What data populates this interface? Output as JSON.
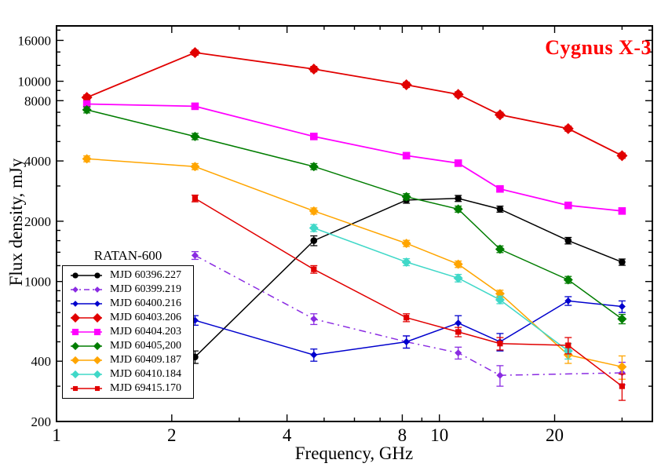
{
  "chart_data": {
    "type": "line",
    "title": "Cygnus X-3",
    "title_color": "#ff0000",
    "xlabel": "Frequency, GHz",
    "ylabel": "Flux density, mJy",
    "xscale": "log",
    "yscale": "log",
    "xlim": [
      1,
      36
    ],
    "ylim": [
      200,
      18900
    ],
    "x_ticks_major": [
      1,
      2,
      4,
      8,
      10,
      20
    ],
    "x_ticks_minor": [
      3,
      5,
      6,
      7,
      9,
      13,
      30
    ],
    "y_ticks_major": [
      200,
      400,
      1000,
      2000,
      4000,
      8000,
      10000,
      16000
    ],
    "y_ticks_minor": [
      300,
      500,
      600,
      700,
      800,
      900,
      1200,
      1400,
      1600,
      1800,
      3000,
      5000,
      6000,
      7000,
      9000,
      12000,
      14000,
      18000
    ],
    "legend_title": "RATAN-600",
    "legend_position": "lower left",
    "frequencies_ghz": [
      1.2,
      2.3,
      4.7,
      8.2,
      11.2,
      14.4,
      21.7,
      30.0
    ],
    "series": [
      {
        "name": "MJD 60396.227",
        "color": "#000000",
        "marker": "circle",
        "line": "solid",
        "values": [
          null,
          420,
          1600,
          2550,
          2600,
          2300,
          1600,
          1250
        ],
        "errors": [
          null,
          30,
          90,
          90,
          90,
          80,
          60,
          45
        ]
      },
      {
        "name": "MJD 60399.219",
        "color": "#8a2be2",
        "marker": "diamond-small",
        "line": "dashdot",
        "values": [
          null,
          1350,
          650,
          500,
          440,
          340,
          null,
          350
        ],
        "errors": [
          null,
          60,
          40,
          35,
          30,
          40,
          null,
          45
        ]
      },
      {
        "name": "MJD 60400.216",
        "color": "#0000cd",
        "marker": "diamond-small",
        "line": "solid",
        "values": [
          null,
          640,
          430,
          500,
          620,
          500,
          800,
          750
        ],
        "errors": [
          null,
          35,
          30,
          35,
          55,
          50,
          40,
          50
        ]
      },
      {
        "name": "MJD 60403.206",
        "color": "#e10000",
        "marker": "diamond-large",
        "line": "solid",
        "values": [
          8300,
          13900,
          11500,
          9600,
          8600,
          6800,
          5800,
          4250
        ],
        "errors": [
          250,
          400,
          350,
          290,
          260,
          200,
          170,
          130
        ]
      },
      {
        "name": "MJD 60404.203",
        "color": "#ff00ff",
        "marker": "square",
        "line": "solid",
        "values": [
          7700,
          7500,
          5300,
          4250,
          3900,
          2900,
          2400,
          2250
        ],
        "errors": [
          230,
          220,
          160,
          130,
          120,
          90,
          75,
          70
        ]
      },
      {
        "name": "MJD 60405,200",
        "color": "#007d00",
        "marker": "diamond",
        "line": "solid",
        "values": [
          7200,
          5300,
          3750,
          2650,
          2300,
          1450,
          1020,
          650
        ],
        "errors": [
          250,
          190,
          130,
          95,
          80,
          55,
          40,
          35
        ]
      },
      {
        "name": "MJD 60409.187",
        "color": "#ffa500",
        "marker": "diamond",
        "line": "solid",
        "values": [
          4100,
          3750,
          2250,
          1550,
          1220,
          870,
          430,
          375
        ],
        "errors": [
          140,
          130,
          80,
          55,
          45,
          35,
          40,
          50
        ]
      },
      {
        "name": "MJD 60410.184",
        "color": "#40d8c8",
        "marker": "diamond",
        "line": "solid",
        "values": [
          null,
          null,
          1850,
          1250,
          1040,
          810,
          450,
          null
        ],
        "errors": [
          null,
          null,
          75,
          50,
          45,
          35,
          40,
          null
        ]
      },
      {
        "name": "MJD 69415.170",
        "color": "#e10000",
        "marker": "square-small",
        "line": "solid",
        "values": [
          null,
          2600,
          1150,
          660,
          560,
          490,
          480,
          300
        ],
        "errors": [
          null,
          100,
          50,
          30,
          30,
          35,
          45,
          45
        ]
      }
    ]
  }
}
